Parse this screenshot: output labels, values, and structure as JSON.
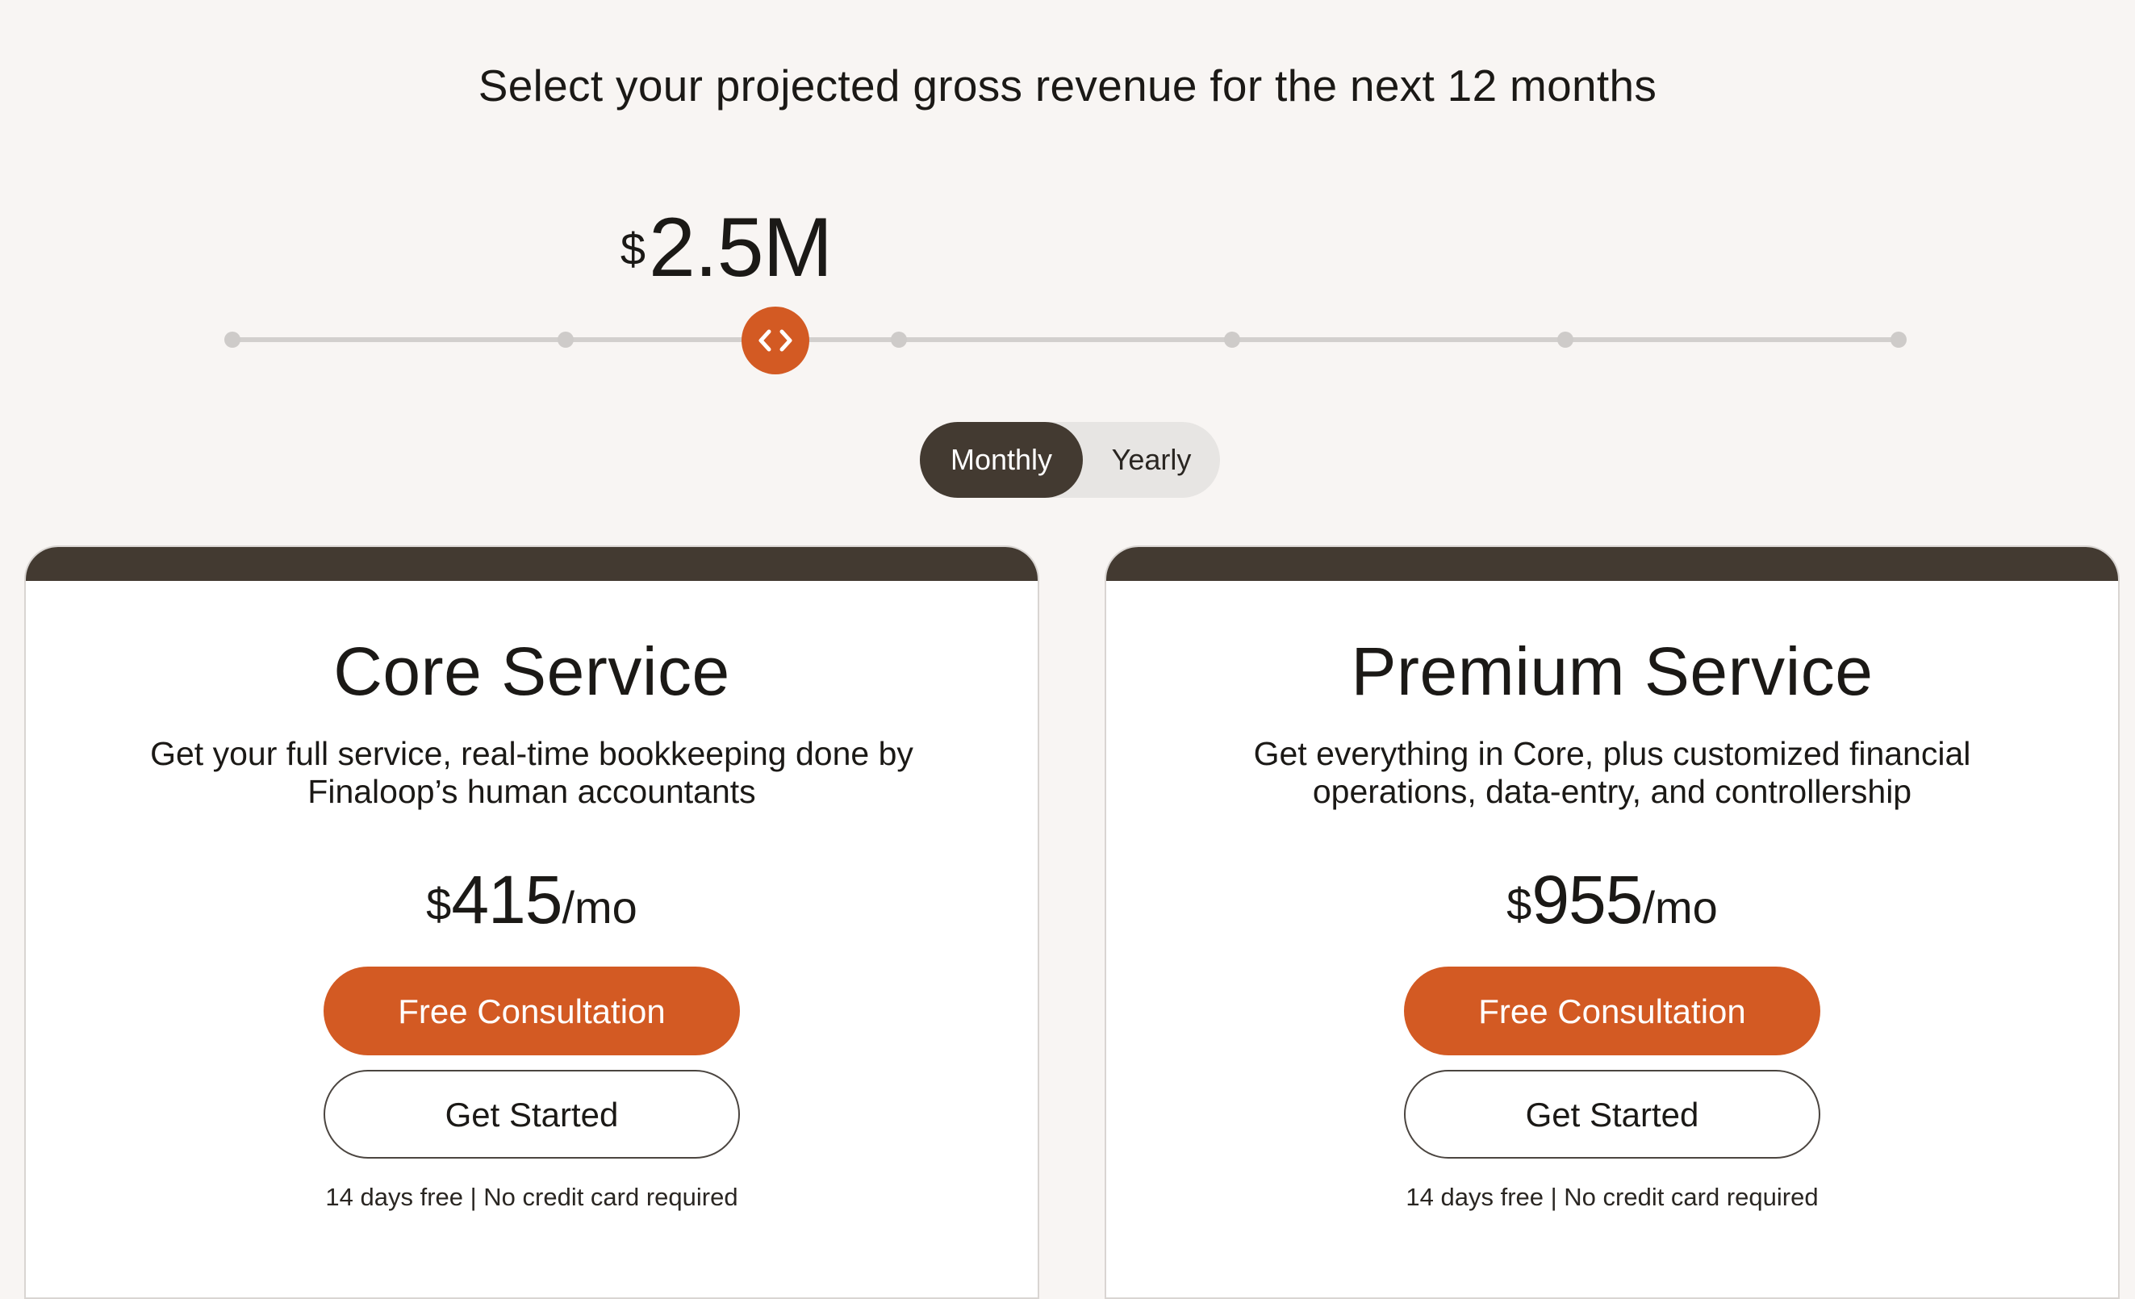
{
  "heading": "Select your projected gross revenue for the next 12 months",
  "revenue_slider": {
    "currency": "$",
    "value": "2.5M",
    "selected_step": 2,
    "step_count": 6,
    "thumb_icon": "code-chevrons-icon"
  },
  "billing_toggle": {
    "monthly_label": "Monthly",
    "yearly_label": "Yearly",
    "selected": "Monthly"
  },
  "plans": [
    {
      "title": "Core Service",
      "description": "Get your full service, real-time bookkeeping done by Finaloop’s human accountants",
      "price_currency": "$",
      "price_amount": "415",
      "price_period": "/mo",
      "primary_button": "Free Consultation",
      "secondary_button": "Get Started",
      "note": "14 days free | No credit card required"
    },
    {
      "title": "Premium Service",
      "description": "Get everything in Core, plus customized financial operations, data-entry, and controllership",
      "price_currency": "$",
      "price_amount": "955",
      "price_period": "/mo",
      "primary_button": "Free Consultation",
      "secondary_button": "Get Started",
      "note": "14 days free | No credit card required"
    }
  ],
  "colors": {
    "background": "#f8f5f3",
    "accent": "#d35a23",
    "dark": "#433a31",
    "track": "#d2cfcd"
  }
}
